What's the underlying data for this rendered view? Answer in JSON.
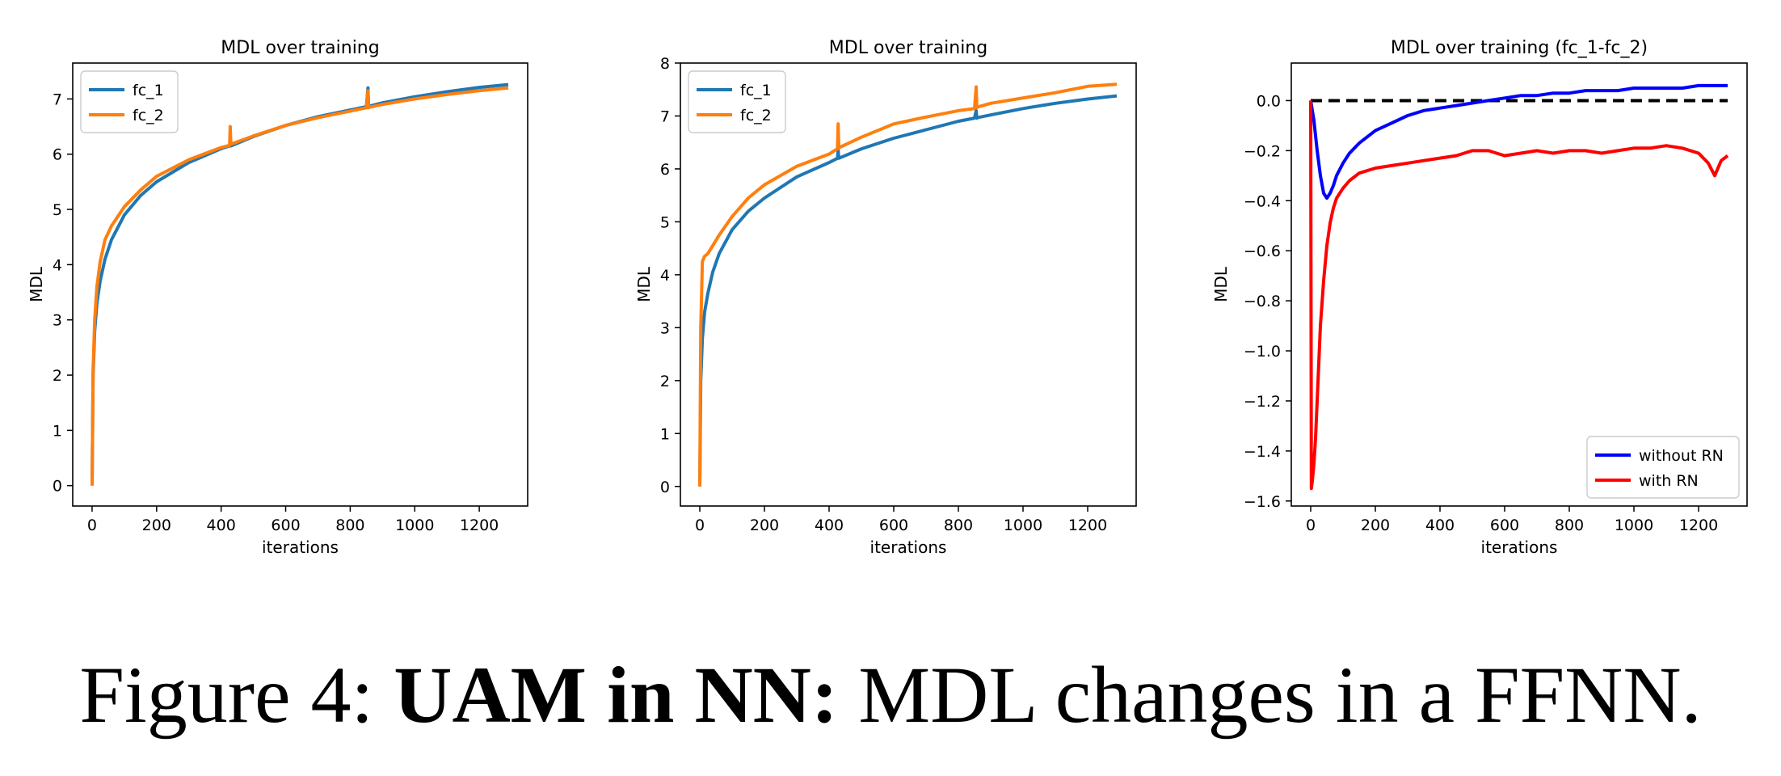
{
  "caption": {
    "prefix": "Figure 4: ",
    "bold": "UAM in NN:",
    "rest": " MDL changes in a FFNN."
  },
  "chart_data": [
    {
      "type": "line",
      "title": "MDL over training",
      "xlabel": "iterations",
      "ylabel": "MDL",
      "xlim": [
        -60,
        1350
      ],
      "ylim": [
        -0.37,
        7.65
      ],
      "xticks": [
        0,
        200,
        400,
        600,
        800,
        1000,
        1200
      ],
      "yticks": [
        0,
        1,
        2,
        3,
        4,
        5,
        6,
        7
      ],
      "grid": false,
      "legend": "top-left",
      "series": [
        {
          "name": "fc_1",
          "color": "#1f77b4",
          "x": [
            0,
            3,
            8,
            15,
            25,
            40,
            60,
            100,
            150,
            200,
            300,
            400,
            426,
            428,
            430,
            500,
            600,
            700,
            800,
            850,
            855,
            857,
            860,
            900,
            1000,
            1100,
            1200,
            1290
          ],
          "y": [
            0,
            2.0,
            2.8,
            3.3,
            3.7,
            4.1,
            4.45,
            4.9,
            5.25,
            5.5,
            5.85,
            6.1,
            6.15,
            6.15,
            6.15,
            6.32,
            6.52,
            6.68,
            6.8,
            6.86,
            7.2,
            6.86,
            6.87,
            6.93,
            7.04,
            7.13,
            7.21,
            7.26
          ]
        },
        {
          "name": "fc_2",
          "color": "#ff7f0e",
          "x": [
            0,
            3,
            8,
            15,
            25,
            40,
            60,
            100,
            150,
            200,
            300,
            400,
            426,
            428,
            430,
            500,
            600,
            700,
            800,
            850,
            855,
            857,
            860,
            900,
            1000,
            1100,
            1200,
            1290
          ],
          "y": [
            0,
            2.1,
            3.0,
            3.6,
            4.05,
            4.45,
            4.7,
            5.05,
            5.35,
            5.6,
            5.9,
            6.12,
            6.16,
            6.5,
            6.18,
            6.33,
            6.52,
            6.66,
            6.78,
            6.84,
            7.15,
            6.84,
            6.85,
            6.9,
            7.0,
            7.08,
            7.15,
            7.2
          ]
        }
      ]
    },
    {
      "type": "line",
      "title": "MDL over training",
      "xlabel": "iterations",
      "ylabel": "MDL",
      "xlim": [
        -60,
        1350
      ],
      "ylim": [
        -0.37,
        8.0
      ],
      "xticks": [
        0,
        200,
        400,
        600,
        800,
        1000,
        1200
      ],
      "yticks": [
        0,
        1,
        2,
        3,
        4,
        5,
        6,
        7,
        8
      ],
      "grid": false,
      "legend": "top-left",
      "series": [
        {
          "name": "fc_1",
          "color": "#1f77b4",
          "x": [
            0,
            3,
            8,
            15,
            25,
            40,
            60,
            100,
            150,
            200,
            300,
            400,
            426,
            428,
            430,
            500,
            600,
            700,
            800,
            850,
            855,
            857,
            860,
            900,
            1000,
            1100,
            1200,
            1290
          ],
          "y": [
            0,
            2.0,
            2.8,
            3.3,
            3.65,
            4.05,
            4.4,
            4.85,
            5.2,
            5.45,
            5.85,
            6.12,
            6.2,
            6.35,
            6.2,
            6.38,
            6.58,
            6.74,
            6.9,
            6.96,
            7.1,
            6.96,
            6.97,
            7.02,
            7.14,
            7.24,
            7.32,
            7.38
          ]
        },
        {
          "name": "fc_2",
          "color": "#ff7f0e",
          "x": [
            0,
            3,
            8,
            15,
            25,
            40,
            60,
            100,
            150,
            200,
            300,
            400,
            426,
            428,
            430,
            500,
            600,
            700,
            800,
            850,
            855,
            857,
            860,
            900,
            1000,
            1100,
            1200,
            1290
          ],
          "y": [
            0,
            3.0,
            4.25,
            4.35,
            4.4,
            4.55,
            4.75,
            5.1,
            5.45,
            5.7,
            6.05,
            6.28,
            6.38,
            6.85,
            6.4,
            6.6,
            6.85,
            6.98,
            7.1,
            7.14,
            7.55,
            7.16,
            7.17,
            7.24,
            7.34,
            7.44,
            7.56,
            7.6
          ]
        }
      ]
    },
    {
      "type": "line",
      "title": "MDL over training (fc_1-fc_2)",
      "xlabel": "iterations",
      "ylabel": "MDL",
      "xlim": [
        -60,
        1350
      ],
      "ylim": [
        -1.62,
        0.15
      ],
      "xticks": [
        0,
        200,
        400,
        600,
        800,
        1000,
        1200
      ],
      "yticks": [
        0.0,
        -0.2,
        -0.4,
        -0.6,
        -0.8,
        -1.0,
        -1.2,
        -1.4,
        -1.6
      ],
      "ytick_labels": [
        "0.0",
        "−0.2",
        "−0.4",
        "−0.6",
        "−0.8",
        "−1.0",
        "−1.2",
        "−1.4",
        "−1.6"
      ],
      "grid": false,
      "legend": "bottom-right",
      "reference_line": {
        "y": 0,
        "style": "dashed",
        "color": "#000000"
      },
      "series": [
        {
          "name": "without RN",
          "color": "#0000ff",
          "x": [
            0,
            10,
            20,
            30,
            40,
            50,
            60,
            70,
            80,
            100,
            120,
            150,
            200,
            250,
            300,
            350,
            400,
            450,
            500,
            550,
            600,
            650,
            700,
            750,
            800,
            850,
            900,
            950,
            1000,
            1050,
            1100,
            1150,
            1200,
            1250,
            1290
          ],
          "y": [
            0,
            -0.08,
            -0.2,
            -0.3,
            -0.37,
            -0.39,
            -0.37,
            -0.34,
            -0.3,
            -0.25,
            -0.21,
            -0.17,
            -0.12,
            -0.09,
            -0.06,
            -0.04,
            -0.03,
            -0.02,
            -0.01,
            0.0,
            0.01,
            0.02,
            0.02,
            0.03,
            0.03,
            0.04,
            0.04,
            0.04,
            0.05,
            0.05,
            0.05,
            0.05,
            0.06,
            0.06,
            0.06
          ]
        },
        {
          "name": "with RN",
          "color": "#ff0000",
          "x": [
            0,
            2,
            5,
            10,
            15,
            20,
            25,
            30,
            40,
            50,
            60,
            70,
            80,
            100,
            120,
            150,
            200,
            250,
            300,
            350,
            400,
            450,
            500,
            550,
            600,
            650,
            700,
            750,
            800,
            850,
            900,
            950,
            1000,
            1050,
            1100,
            1150,
            1200,
            1230,
            1250,
            1270,
            1290
          ],
          "y": [
            0,
            -1.55,
            -1.52,
            -1.45,
            -1.35,
            -1.2,
            -1.05,
            -0.9,
            -0.72,
            -0.58,
            -0.49,
            -0.43,
            -0.39,
            -0.35,
            -0.32,
            -0.29,
            -0.27,
            -0.26,
            -0.25,
            -0.24,
            -0.23,
            -0.22,
            -0.2,
            -0.2,
            -0.22,
            -0.21,
            -0.2,
            -0.21,
            -0.2,
            -0.2,
            -0.21,
            -0.2,
            -0.19,
            -0.19,
            -0.18,
            -0.19,
            -0.21,
            -0.25,
            -0.3,
            -0.24,
            -0.22
          ]
        }
      ]
    }
  ]
}
